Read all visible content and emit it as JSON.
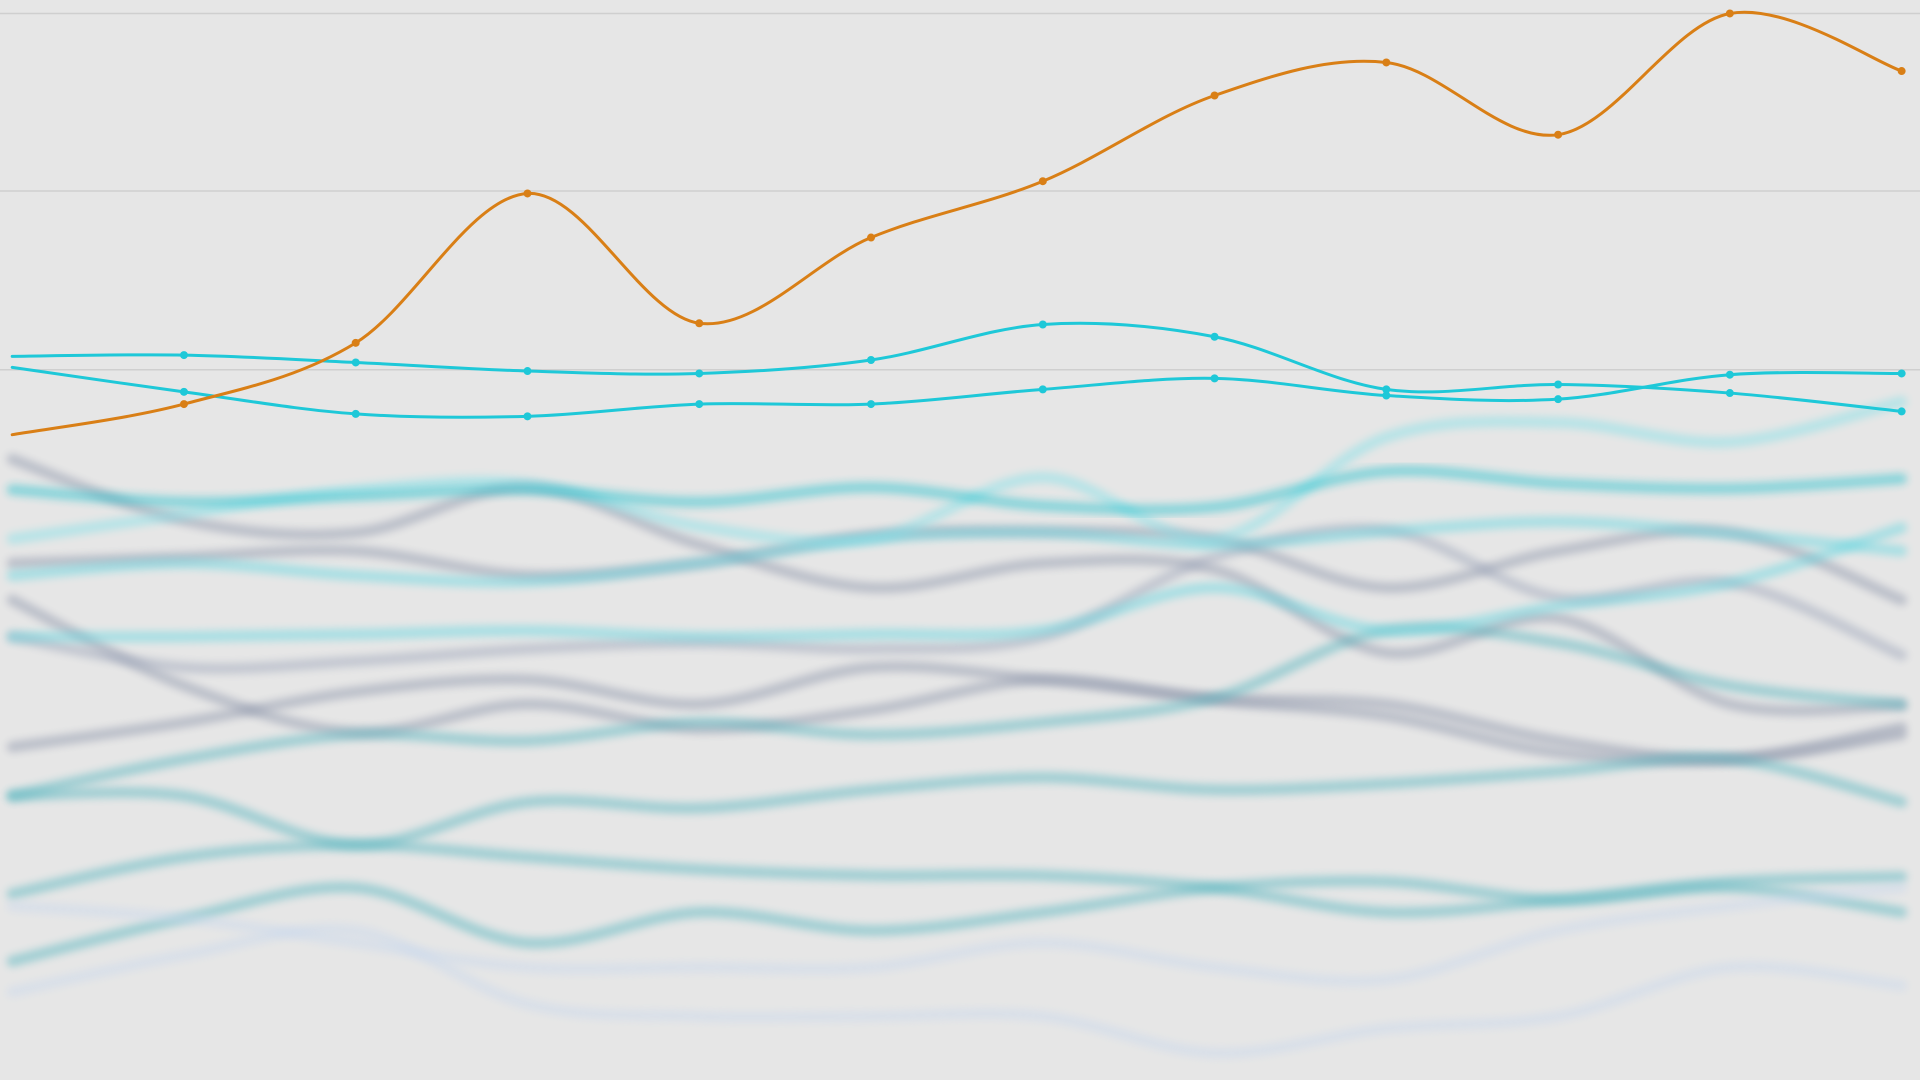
{
  "chart_data": {
    "type": "line",
    "x": [
      0,
      1,
      2,
      3,
      4,
      5,
      6,
      7,
      8,
      9,
      10,
      11
    ],
    "xlim": [
      -0.071,
      11.107
    ],
    "ylim": [
      0,
      882
    ],
    "yticks": [
      580,
      726,
      871
    ],
    "grid": true,
    "series": [
      {
        "color": "#8a93a8",
        "highlight": false,
        "values": [
          507,
          457,
          447,
          484,
          437,
          402,
          422,
          417,
          349,
          377,
          307,
          306
        ]
      },
      {
        "color": "#8a93a8",
        "highlight": false,
        "values": [
          392,
          322,
          284,
          307,
          287,
          302,
          327,
          310,
          297,
          267,
          262,
          288
        ]
      },
      {
        "color": "#8a93a8",
        "highlight": false,
        "values": [
          272,
          292,
          317,
          327,
          307,
          337,
          327,
          312,
          307,
          277,
          262,
          282
        ]
      },
      {
        "color": "#8a93a8",
        "highlight": false,
        "values": [
          422,
          427,
          432,
          412,
          422,
          445,
          448,
          442,
          402,
          432,
          447,
          392
        ]
      },
      {
        "color": "#9aa3b8",
        "highlight": false,
        "values": [
          362,
          337,
          342,
          352,
          357,
          352,
          362,
          427,
          449,
          394,
          406,
          347
        ]
      },
      {
        "color": "#4fb3bd",
        "highlight": false,
        "values": [
          232,
          262,
          282,
          277,
          292,
          282,
          292,
          312,
          367,
          357,
          322,
          307
        ]
      },
      {
        "color": "#4fb3bd",
        "highlight": false,
        "values": [
          232,
          232,
          192,
          227,
          222,
          237,
          247,
          237,
          242,
          252,
          262,
          227
        ]
      },
      {
        "color": "#4fb3bd",
        "highlight": false,
        "values": [
          152,
          182,
          192,
          182,
          172,
          167,
          167,
          157,
          137,
          147,
          162,
          166
        ]
      },
      {
        "color": "#4fb3bd",
        "highlight": false,
        "values": [
          97,
          132,
          157,
          112,
          137,
          122,
          137,
          157,
          162,
          147,
          157,
          137
        ]
      },
      {
        "color": "#c9d8ec",
        "highlight": false,
        "values": [
          72,
          102,
          122,
          62,
          52,
          52,
          52,
          22,
          42,
          52,
          92,
          77
        ]
      },
      {
        "color": "#c9d8ec",
        "highlight": false,
        "values": [
          142,
          132,
          112,
          92,
          92,
          92,
          112,
          92,
          82,
          122,
          142,
          157
        ]
      },
      {
        "color": "#5fd6e0",
        "highlight": false,
        "values": [
          362,
          362,
          364,
          367,
          362,
          364,
          367,
          402,
          367,
          387,
          406,
          451
        ]
      },
      {
        "color": "#5fd6e0",
        "highlight": false,
        "values": [
          412,
          422,
          412,
          407,
          422,
          442,
          447,
          437,
          448,
          456,
          446,
          432
        ]
      },
      {
        "color": "#7fe0e8",
        "highlight": false,
        "values": [
          442,
          462,
          482,
          487,
          452,
          442,
          492,
          442,
          525,
          537,
          521,
          554
        ]
      },
      {
        "color": "#1bbfcc",
        "highlight": false,
        "values": [
          482,
          472,
          477,
          482,
          472,
          484,
          469,
          468,
          497,
          487,
          483,
          491
        ]
      },
      {
        "color": "#1ec8d8",
        "highlight": true,
        "values": [
          591,
          592,
          586,
          579,
          577,
          588,
          617,
          607,
          564,
          568,
          561,
          546
        ]
      },
      {
        "color": "#1ec8d8",
        "highlight": true,
        "values": [
          582,
          562,
          544,
          542,
          552,
          552,
          564,
          573,
          559,
          556,
          576,
          577
        ]
      },
      {
        "color": "#d97f16",
        "highlight": true,
        "values": [
          527,
          552,
          602,
          724,
          618,
          688,
          734,
          804,
          831,
          772,
          871,
          824
        ]
      }
    ]
  }
}
